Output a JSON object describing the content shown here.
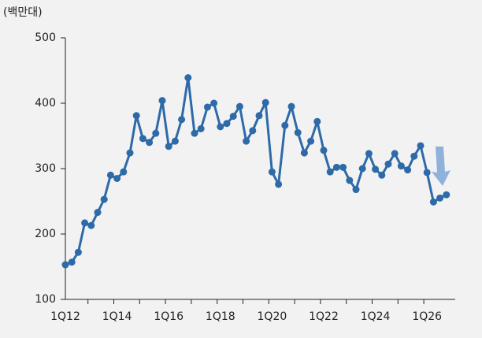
{
  "chart_data": {
    "type": "line",
    "y_unit_label": "(백만대)",
    "categories": [
      "1Q12",
      null,
      null,
      null,
      null,
      null,
      null,
      null,
      "1Q14",
      null,
      null,
      null,
      null,
      null,
      null,
      null,
      "1Q16",
      null,
      null,
      null,
      null,
      null,
      null,
      null,
      "1Q18",
      null,
      null,
      null,
      null,
      null,
      null,
      null,
      "1Q20",
      null,
      null,
      null,
      null,
      null,
      null,
      null,
      "1Q22",
      null,
      null,
      null,
      null,
      null,
      null,
      null,
      "1Q24",
      null,
      null,
      null,
      null,
      null,
      null,
      null,
      "1Q26",
      null,
      null,
      null
    ],
    "series": [
      {
        "color": "#2e6aa8",
        "values": [
          153,
          157,
          172,
          217,
          213,
          233,
          253,
          290,
          285,
          295,
          324,
          381,
          346,
          340,
          354,
          404,
          334,
          342,
          375,
          439,
          354,
          361,
          394,
          400,
          364,
          369,
          380,
          395,
          342,
          358,
          381,
          401,
          295,
          276,
          366,
          395,
          355,
          324,
          342,
          372,
          328,
          295,
          302,
          302,
          282,
          268,
          300,
          323,
          299,
          290,
          307,
          323,
          304,
          298,
          319,
          335,
          294,
          249,
          255,
          260
        ]
      }
    ],
    "ylim": [
      100,
      500
    ],
    "yticks": [
      100,
      200,
      300,
      400,
      500
    ]
  }
}
